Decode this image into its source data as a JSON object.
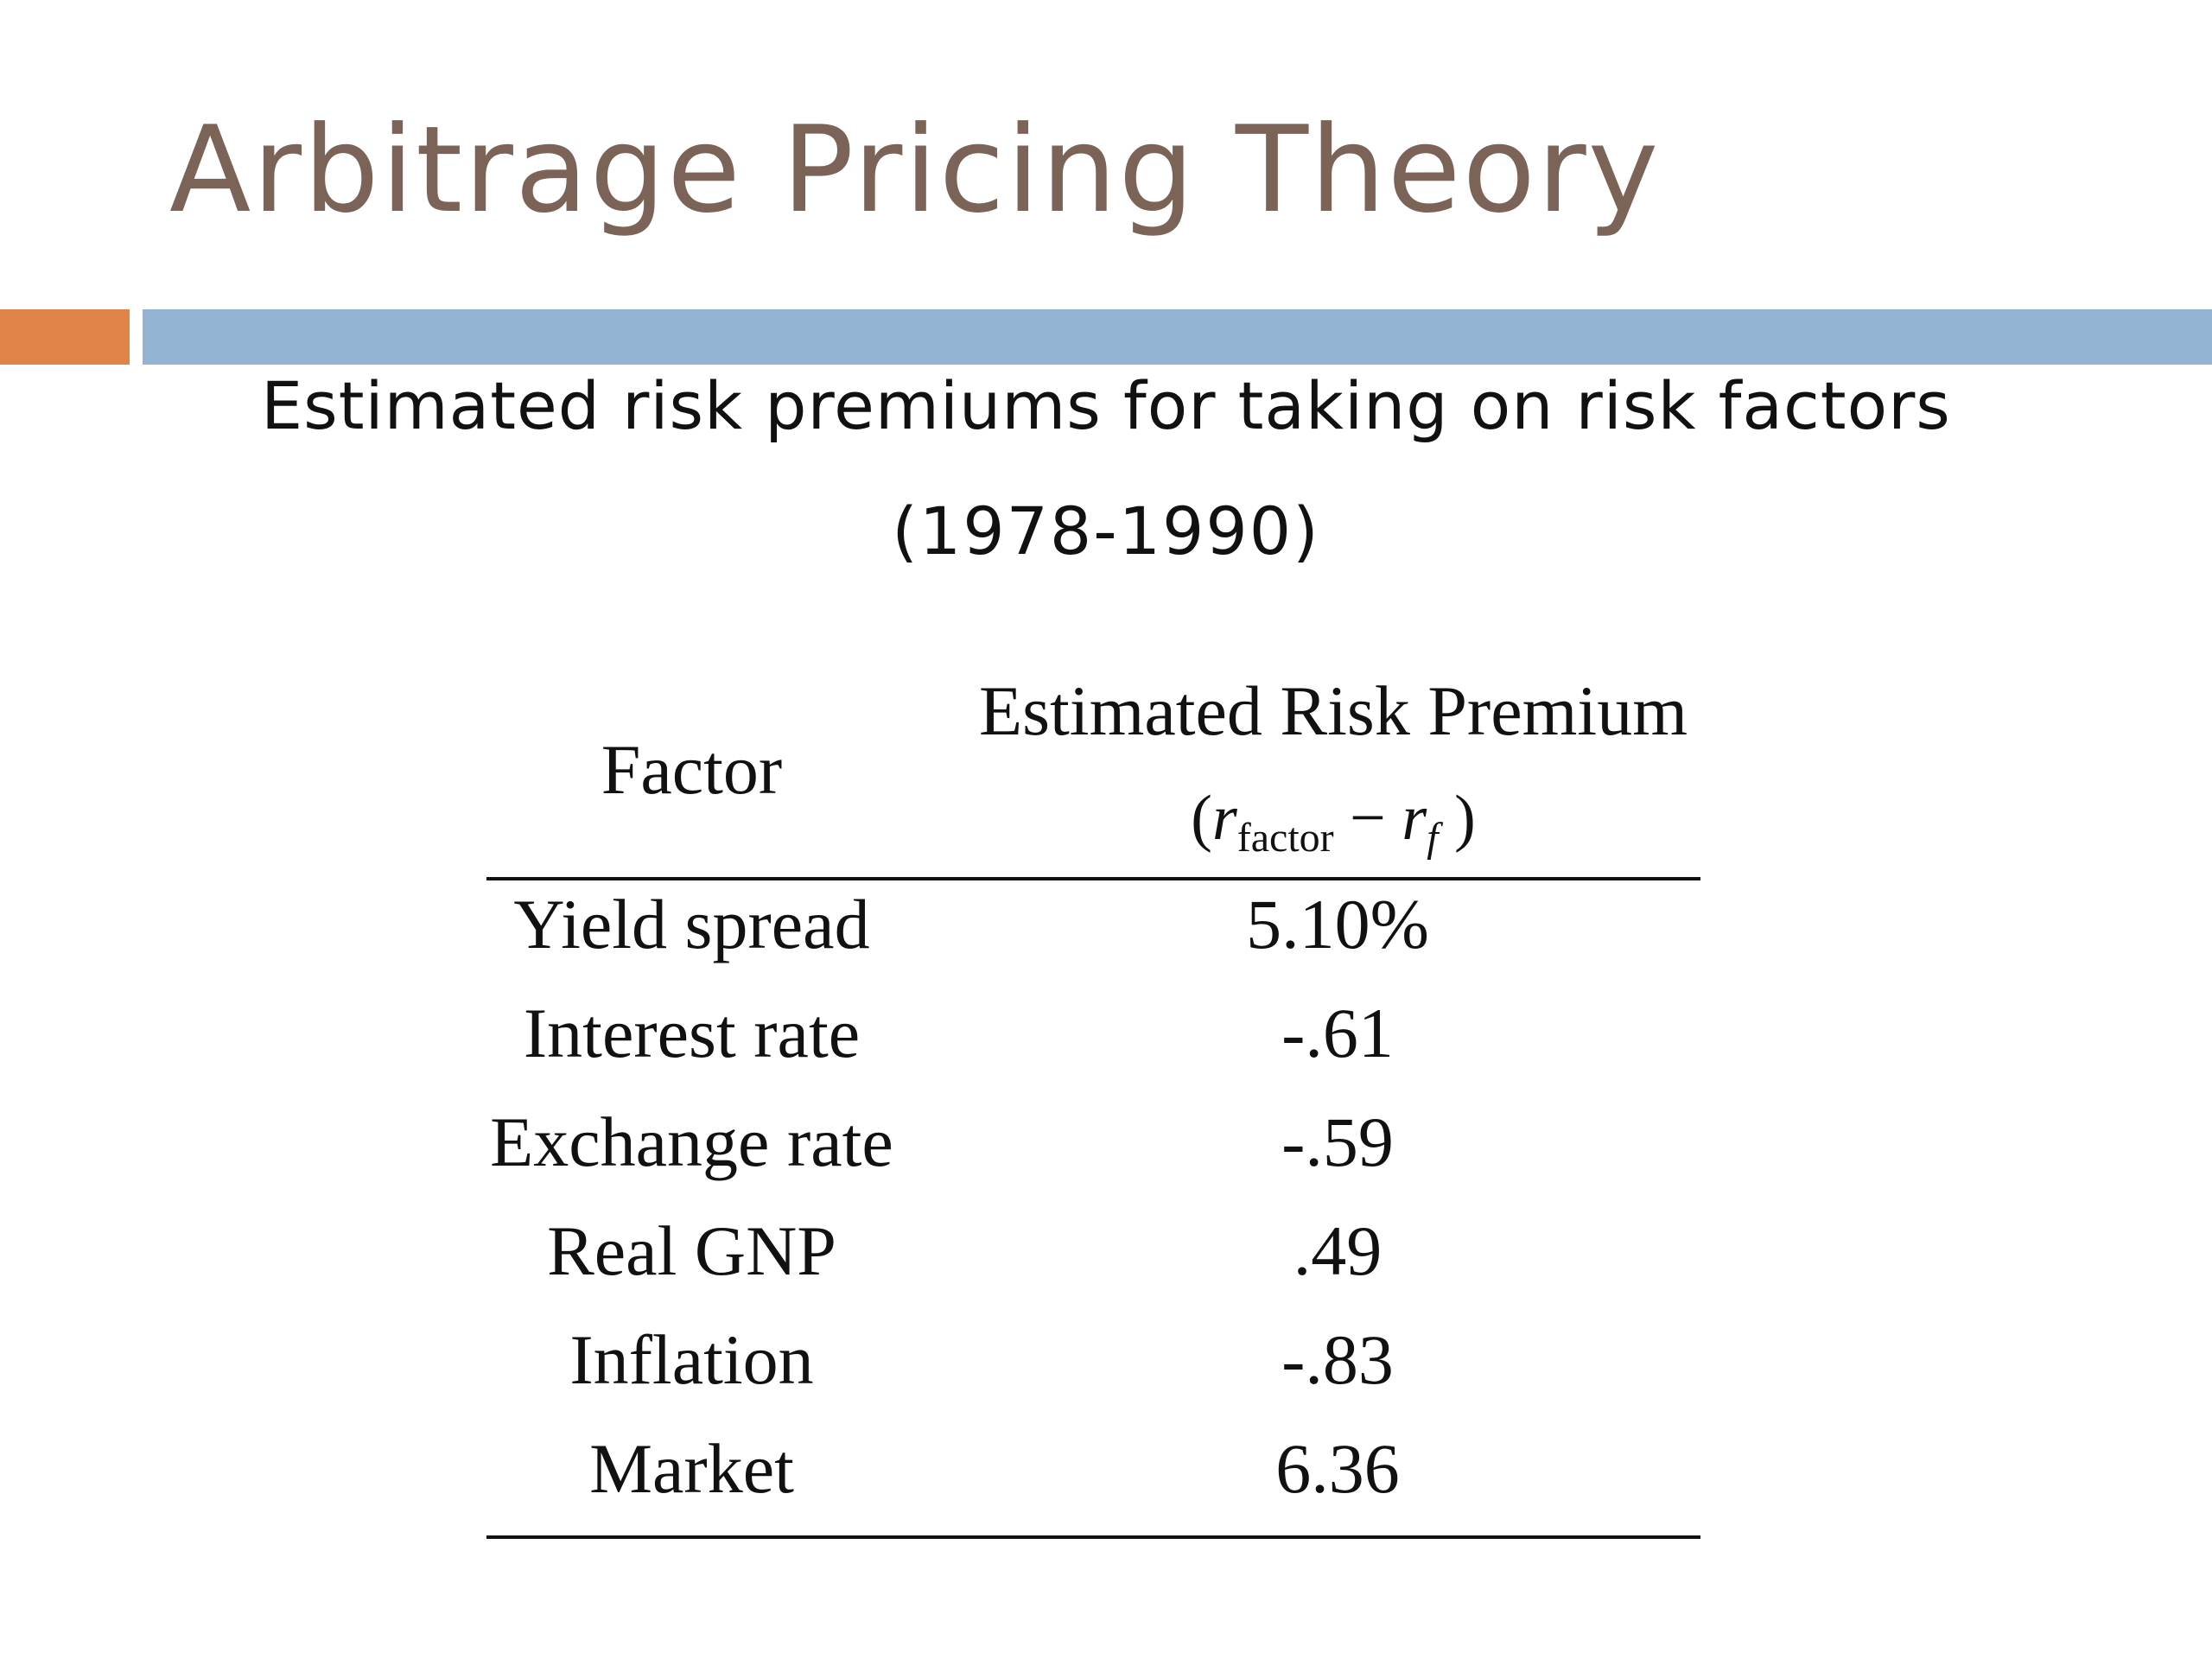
{
  "slide": {
    "title": "Arbitrage Pricing Theory",
    "subtitle_line1": "Estimated risk premiums for taking on risk factors",
    "subtitle_line2": "(1978-1990)"
  },
  "table": {
    "header": {
      "factor": "Factor",
      "premium": "Estimated Risk Premium",
      "formula": {
        "open": "(",
        "r1": "r",
        "r1_sub": "factor",
        "minus": " − ",
        "r2": "r",
        "r2_sub": "f",
        "close": " )"
      }
    },
    "rows": [
      {
        "factor": "Yield spread",
        "value": "5.10%"
      },
      {
        "factor": "Interest rate",
        "value": "-.61"
      },
      {
        "factor": "Exchange rate",
        "value": "-.59"
      },
      {
        "factor": "Real GNP",
        "value": ".49"
      },
      {
        "factor": "Inflation",
        "value": "-.83"
      },
      {
        "factor": "Market",
        "value": "6.36"
      }
    ]
  },
  "colors": {
    "title": "#7b6358",
    "accent_orange": "#e0844a",
    "accent_blue": "#93b5d3"
  }
}
